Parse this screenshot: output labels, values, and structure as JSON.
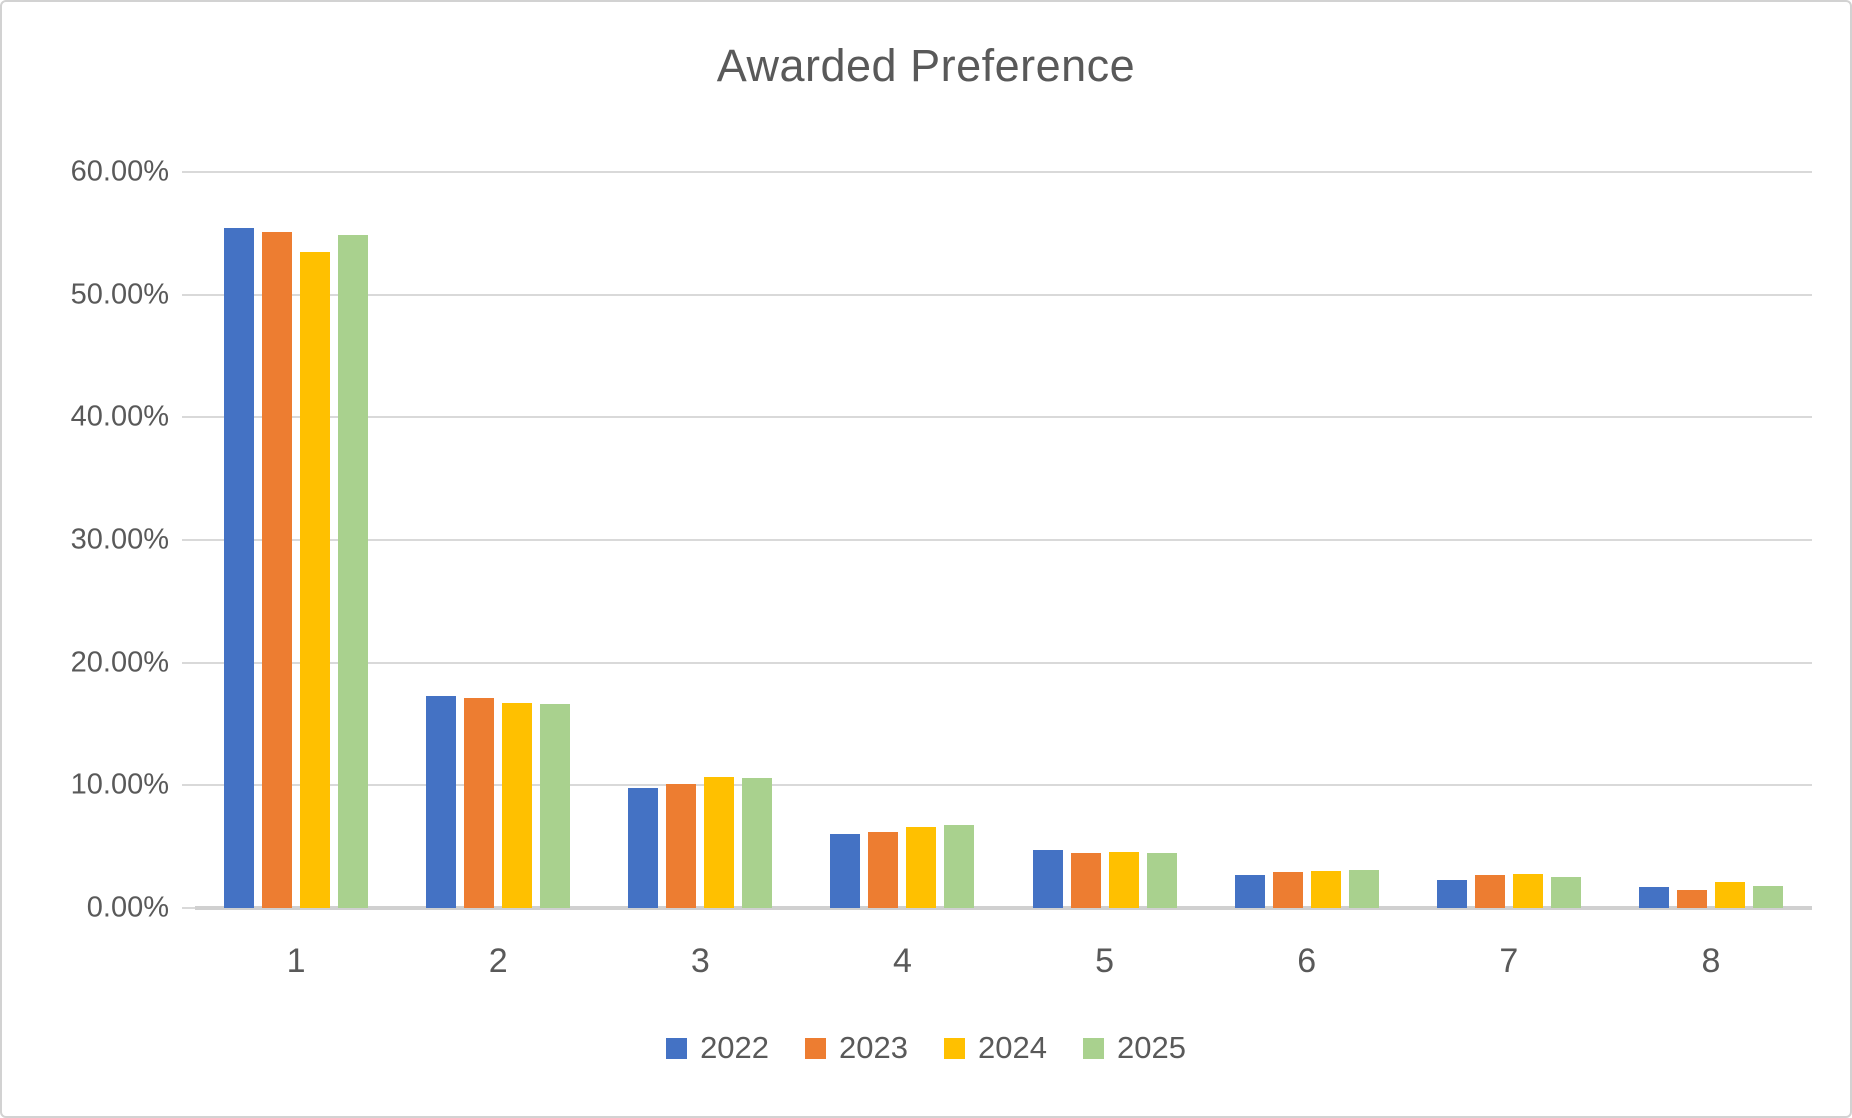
{
  "title": "Awarded Preference",
  "colors": {
    "text": "#595959",
    "gridline": "#d9d9d9",
    "axis_line": "#d0d0d0",
    "card_border": "#d2d2d2",
    "background": "#ffffff"
  },
  "chart_data": {
    "type": "bar",
    "title": "Awarded Preference",
    "categories": [
      "1",
      "2",
      "3",
      "4",
      "5",
      "6",
      "7",
      "8"
    ],
    "series": [
      {
        "name": "2022",
        "color": "#4472C4",
        "values": [
          55.4,
          17.3,
          9.8,
          6.0,
          4.7,
          2.7,
          2.3,
          1.7
        ]
      },
      {
        "name": "2023",
        "color": "#ED7D31",
        "values": [
          55.1,
          17.1,
          10.1,
          6.2,
          4.5,
          2.9,
          2.7,
          1.5
        ]
      },
      {
        "name": "2024",
        "color": "#FFC000",
        "values": [
          53.5,
          16.7,
          10.7,
          6.6,
          4.6,
          3.0,
          2.8,
          2.1
        ]
      },
      {
        "name": "2025",
        "color": "#A9D18E",
        "values": [
          54.9,
          16.6,
          10.6,
          6.8,
          4.5,
          3.1,
          2.5,
          1.8
        ]
      }
    ],
    "xlabel": "",
    "ylabel": "",
    "ylim": [
      0,
      60
    ],
    "y_tick_step": 10,
    "y_tick_labels": [
      "60.00%",
      "50.00%",
      "40.00%",
      "30.00%",
      "20.00%",
      "10.00%",
      "0.00%"
    ],
    "value_format": "percent",
    "grid": true,
    "legend_position": "bottom"
  }
}
